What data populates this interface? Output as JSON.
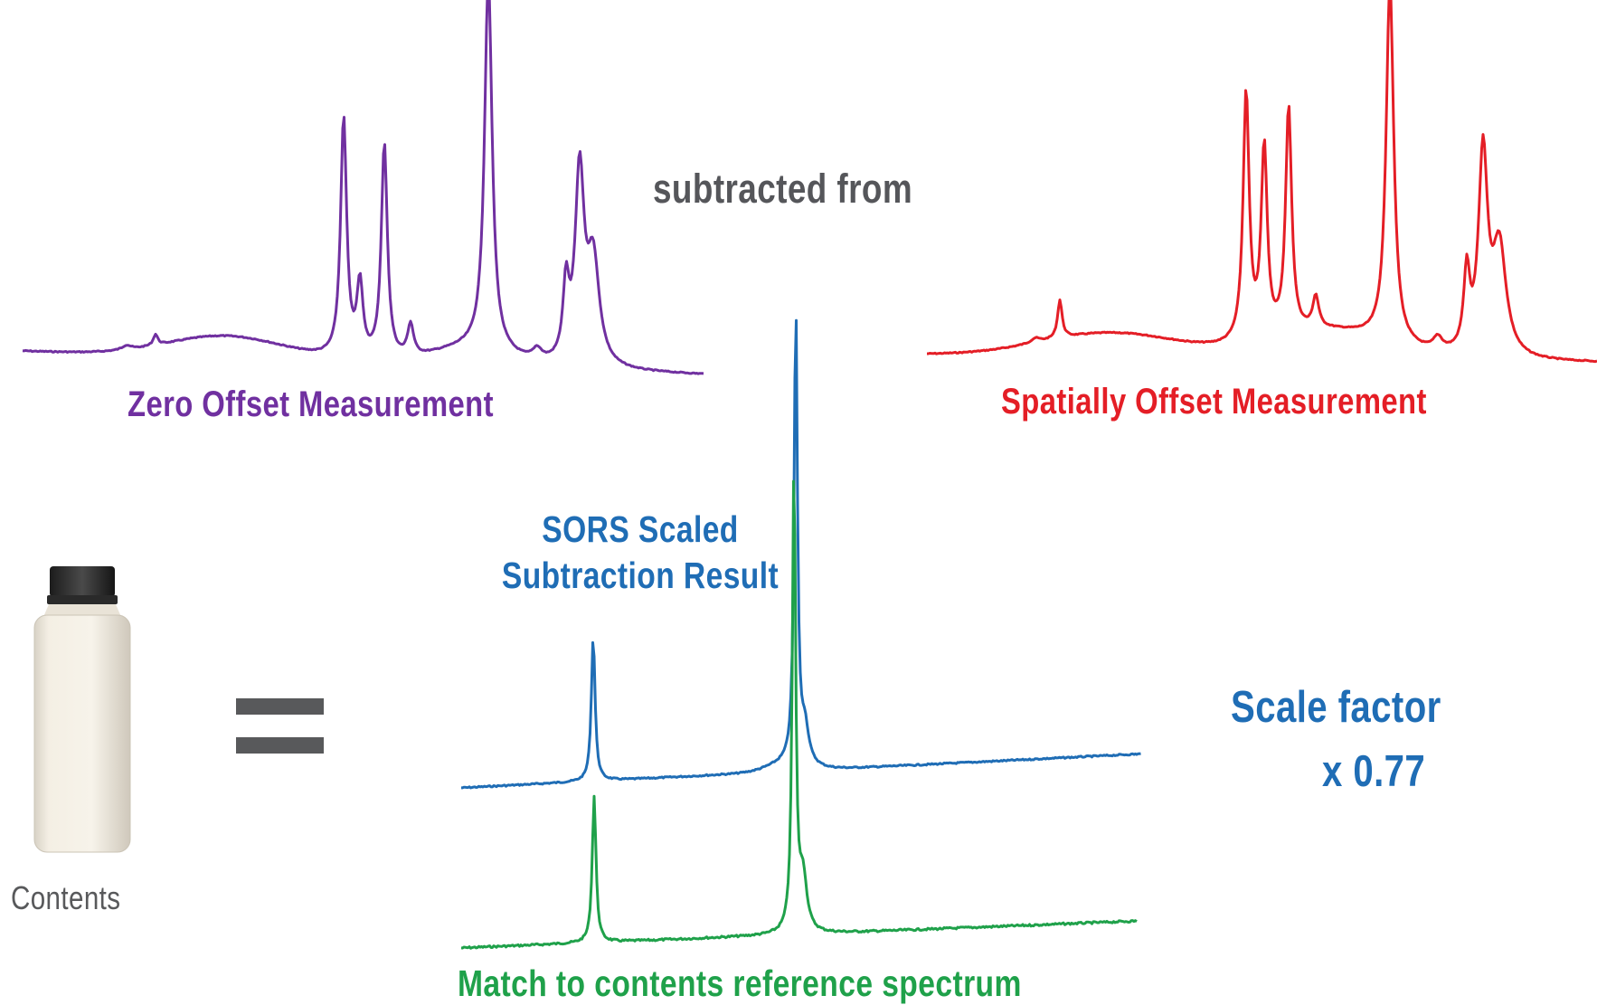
{
  "labels": {
    "zero_offset": "Zero Offset Measurement",
    "spatially_offset": "Spatially Offset Measurement",
    "subtracted_from": "subtracted from",
    "sors_line1": "SORS Scaled",
    "sors_line2": "Subtraction Result",
    "match": "Match to contents reference spectrum",
    "scale_factor": "Scale factor",
    "scale_value": "x 0.77",
    "contents": "Contents"
  },
  "colors": {
    "zero": "#7030a0",
    "spatial": "#e41e26",
    "sors": "#1f6db5",
    "match": "#1fa14a",
    "gray_text": "#55565a"
  },
  "icons": {
    "bottle": "container-bottle-icon",
    "equals": "equals-sign-icon"
  }
}
